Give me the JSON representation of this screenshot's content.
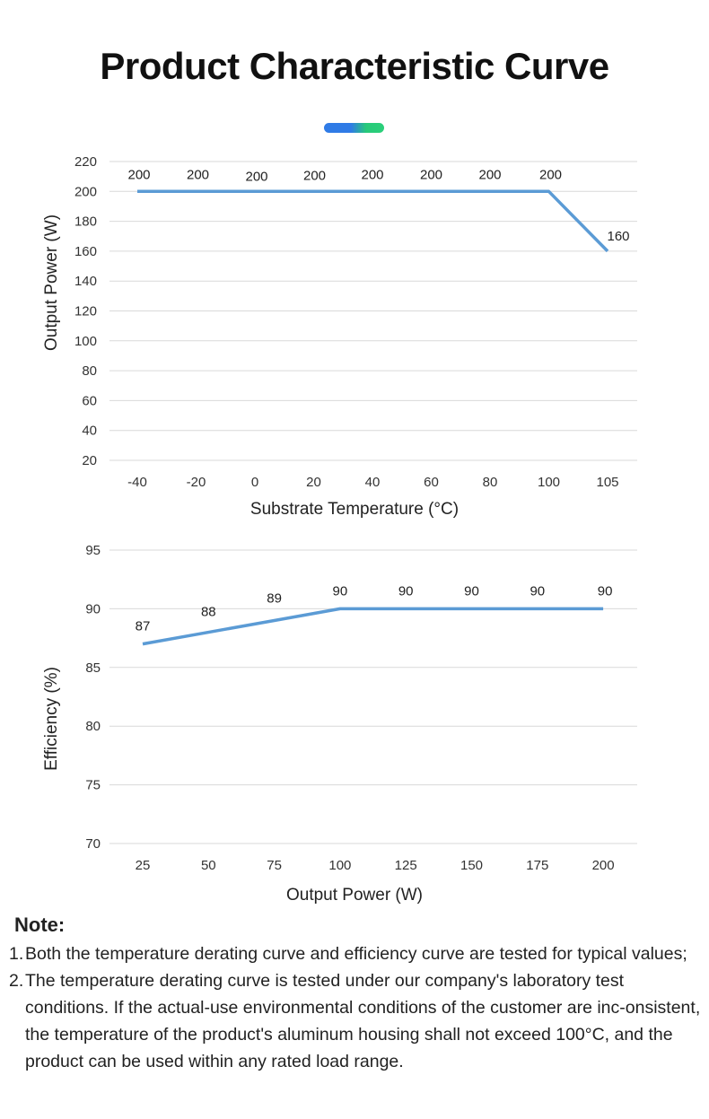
{
  "title": "Product Characteristic Curve",
  "chart_data": [
    {
      "type": "line",
      "categories": [
        "-40",
        "-20",
        "0",
        "20",
        "40",
        "60",
        "80",
        "100",
        "105"
      ],
      "series": [
        {
          "values": [
            200,
            200,
            200,
            200,
            200,
            200,
            200,
            200,
            160
          ]
        }
      ],
      "data_labels": [
        "200",
        "200",
        "200",
        "200",
        "200",
        "200",
        "200",
        "200",
        "160"
      ],
      "xlabel": "Substrate Temperature (°C)",
      "ylabel": "Output Power (W)",
      "ylim": [
        20,
        220
      ],
      "yticks": [
        "20",
        "40",
        "60",
        "80",
        "100",
        "120",
        "140",
        "160",
        "180",
        "200",
        "220"
      ],
      "grid": true,
      "line_color": "#5b9bd5"
    },
    {
      "type": "line",
      "categories": [
        "25",
        "50",
        "75",
        "100",
        "125",
        "150",
        "175",
        "200"
      ],
      "series": [
        {
          "values": [
            87,
            88,
            89,
            90,
            90,
            90,
            90,
            90
          ]
        }
      ],
      "data_labels": [
        "87",
        "88",
        "89",
        "90",
        "90",
        "90",
        "90",
        "90"
      ],
      "xlabel": "Output Power (W)",
      "ylabel": "Efficiency (%)",
      "ylim": [
        70,
        95
      ],
      "yticks": [
        "70",
        "75",
        "80",
        "85",
        "90",
        "95"
      ],
      "grid": true,
      "line_color": "#5b9bd5"
    }
  ],
  "note": {
    "heading": "Note:",
    "items": [
      {
        "num": "1.",
        "text": "Both the temperature derating curve and efficiency curve are tested for typical values;"
      },
      {
        "num": "2.",
        "text": "The temperature derating curve is tested under our company's laboratory test conditions. If the actual-use environmental conditions of the customer are inc-onsistent, the temperature of the product's aluminum housing shall not exceed 100°C, and the product can be used within any rated load range."
      }
    ]
  }
}
